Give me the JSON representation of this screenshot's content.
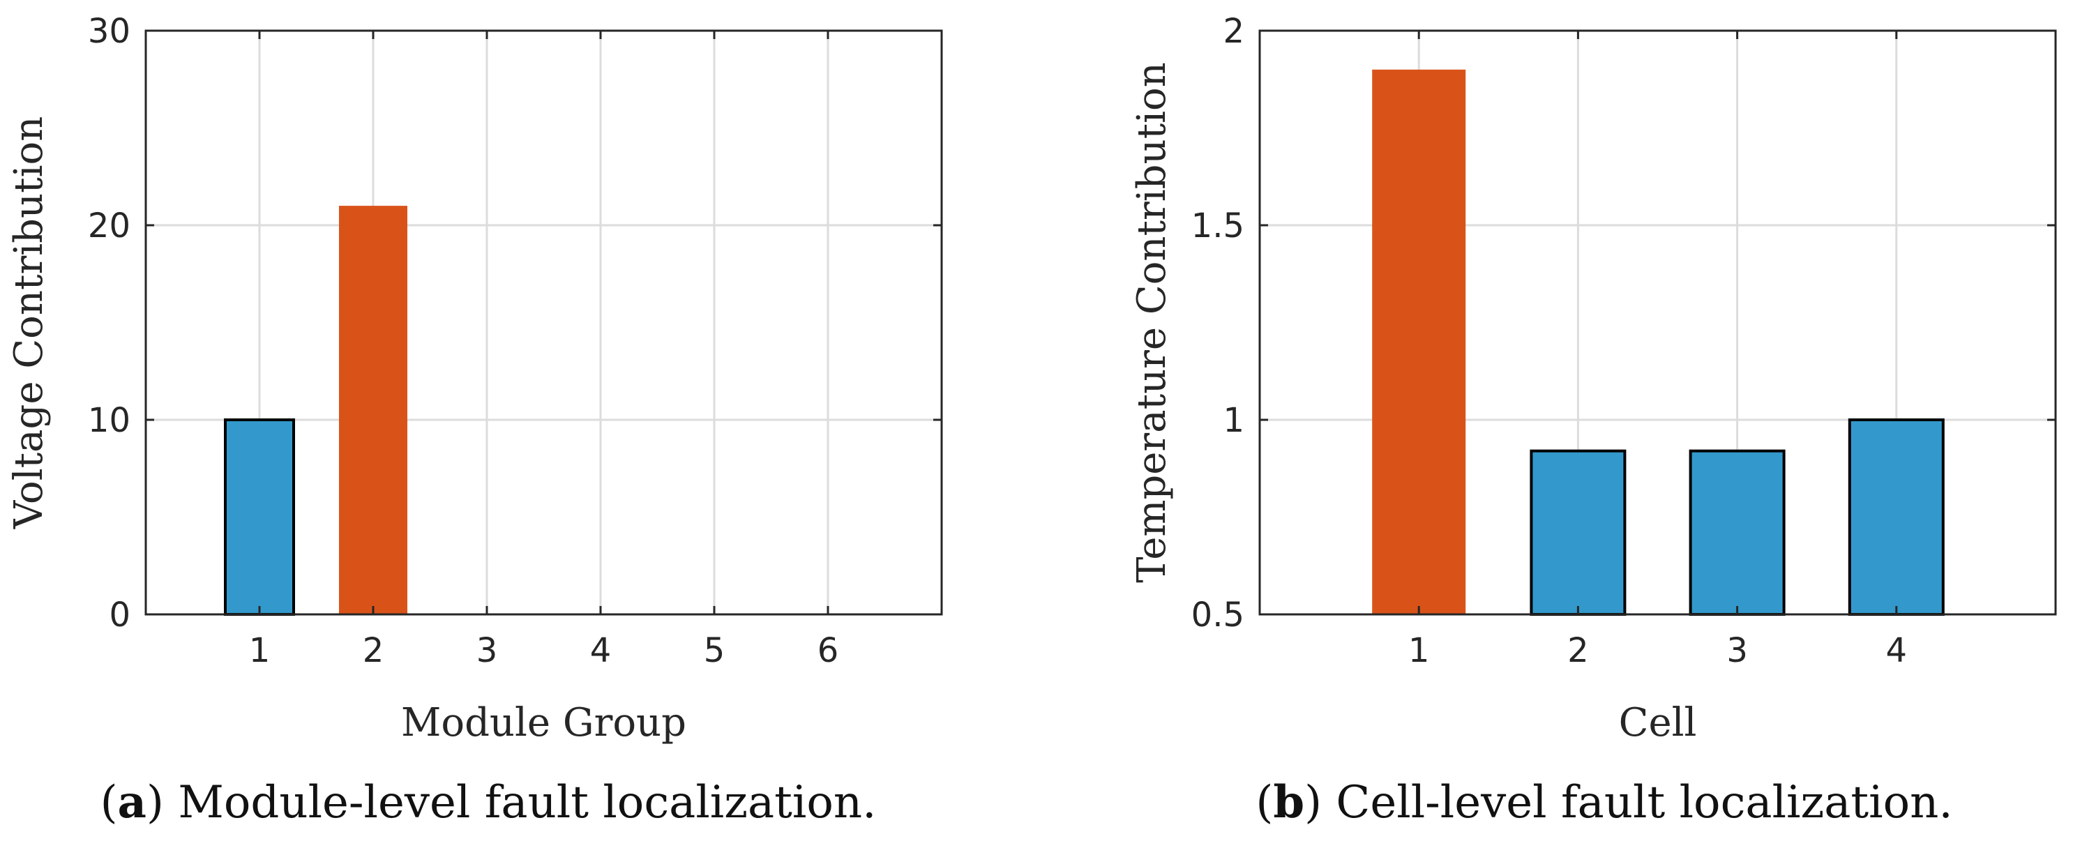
{
  "colors": {
    "normal": "#3399cc",
    "fault": "#d95319",
    "bar_edge": "#000000"
  },
  "chart_data": [
    {
      "type": "bar",
      "panel": "a",
      "caption_letter": "a",
      "caption_text": ") Module-level fault localization.",
      "xlabel": "Module Group",
      "ylabel": "Voltage Contribution",
      "categories": [
        "1",
        "2",
        "3",
        "4",
        "5",
        "6"
      ],
      "values": [
        10,
        21,
        0,
        0,
        0,
        0
      ],
      "highlight": [
        false,
        true,
        false,
        false,
        false,
        false
      ],
      "xlim": [
        0,
        7
      ],
      "ylim": [
        0,
        30
      ],
      "yticks": [
        0,
        10,
        20,
        30
      ],
      "ytick_labels": [
        "0",
        "10",
        "20",
        "30"
      ],
      "grid": true
    },
    {
      "type": "bar",
      "panel": "b",
      "caption_letter": "b",
      "caption_text": ") Cell-level fault localization.",
      "xlabel": "Cell",
      "ylabel": "Temperature Contribution",
      "categories": [
        "1",
        "2",
        "3",
        "4"
      ],
      "values": [
        1.9,
        0.92,
        0.92,
        1.0
      ],
      "highlight": [
        true,
        false,
        false,
        false
      ],
      "xlim": [
        0,
        5
      ],
      "ylim": [
        0.5,
        2
      ],
      "yticks": [
        0.5,
        1,
        1.5,
        2
      ],
      "ytick_labels": [
        "0.5",
        "1",
        "1.5",
        "2"
      ],
      "grid": true
    }
  ]
}
